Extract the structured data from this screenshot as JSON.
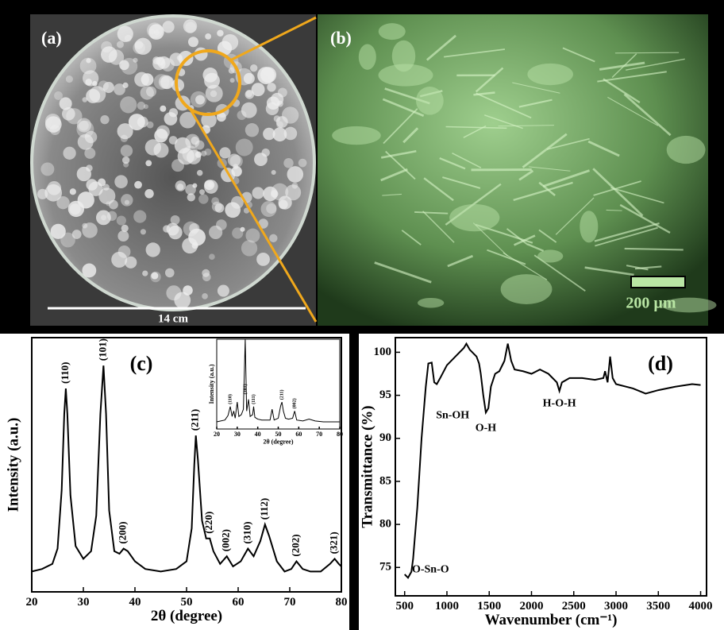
{
  "panels": {
    "a": {
      "label": "(a)",
      "scale": "14 cm"
    },
    "b": {
      "label": "(b)",
      "scale": "200 µm"
    }
  },
  "chart_data": [
    {
      "type": "line",
      "panel": "(c)",
      "xlabel": "2θ (degree)",
      "ylabel": "Intensity (a.u.)",
      "color": "#000000",
      "xlim": [
        20,
        80
      ],
      "xticks": [
        20,
        30,
        40,
        50,
        60,
        70,
        80
      ],
      "ylim": [
        0,
        100
      ],
      "yticks": [],
      "x": [
        20,
        22,
        24,
        25,
        25.8,
        26.3,
        26.6,
        26.9,
        27.5,
        28.5,
        30,
        31.5,
        32.5,
        33.3,
        33.9,
        34.4,
        35,
        36,
        37,
        37.8,
        38.6,
        40,
        42,
        45,
        48,
        50,
        51,
        51.5,
        51.8,
        52.2,
        53,
        53.8,
        54.5,
        55.2,
        56.5,
        57.8,
        59,
        60.5,
        61.9,
        63,
        64.3,
        65.2,
        66,
        67.5,
        69,
        70.3,
        71.3,
        72.5,
        74,
        76,
        77.8,
        78.7,
        79.5,
        80
      ],
      "values": [
        8,
        9,
        11,
        17,
        40,
        70,
        80,
        70,
        38,
        18,
        13,
        16,
        30,
        70,
        89,
        70,
        32,
        16,
        15,
        17,
        16,
        12,
        9,
        8,
        9,
        12,
        25,
        50,
        61.5,
        52,
        28,
        21,
        21,
        16,
        11,
        14,
        10,
        12,
        17,
        14,
        20,
        26.5,
        22,
        12,
        8,
        9,
        12,
        9,
        8,
        8,
        11,
        13,
        11,
        10
      ],
      "annotations": [
        {
          "text": "(110)",
          "x": 26.6,
          "y": 80
        },
        {
          "text": "(101)",
          "x": 33.9,
          "y": 89
        },
        {
          "text": "(200)",
          "x": 37.8,
          "y": 17
        },
        {
          "text": "(211)",
          "x": 51.8,
          "y": 61.5
        },
        {
          "text": "(220)",
          "x": 54.5,
          "y": 21
        },
        {
          "text": "(002)",
          "x": 57.8,
          "y": 14
        },
        {
          "text": "(310)",
          "x": 61.9,
          "y": 17
        },
        {
          "text": "(112)",
          "x": 65.2,
          "y": 26.5
        },
        {
          "text": "(202)",
          "x": 71.3,
          "y": 12
        },
        {
          "text": "(321)",
          "x": 78.7,
          "y": 13
        }
      ]
    },
    {
      "type": "line",
      "xlabel": "2θ (degree)",
      "ylabel": "Intensity (a.u.)",
      "color": "#000000",
      "xlim": [
        20,
        80
      ],
      "xticks": [
        20,
        30,
        40,
        50,
        60,
        70,
        80
      ],
      "ylim": [
        0,
        100
      ],
      "yticks": [],
      "x": [
        20,
        24,
        25.5,
        26.6,
        27.5,
        28.3,
        29,
        30,
        30.8,
        32,
        33,
        33.9,
        34.6,
        35.5,
        36.3,
        37.5,
        38,
        38.6,
        40,
        42,
        46,
        47,
        48,
        50,
        51.2,
        51.8,
        52.5,
        53.5,
        55,
        57,
        58,
        59,
        62,
        65,
        68,
        72,
        76,
        80
      ],
      "values": [
        8,
        10,
        15,
        25,
        14,
        20,
        12,
        30,
        14,
        16,
        22,
        100,
        20,
        33,
        14,
        16,
        25,
        13,
        11,
        10,
        10,
        22,
        10,
        12,
        26,
        30,
        20,
        12,
        11,
        12,
        20,
        10,
        9,
        11,
        9,
        8,
        8,
        8
      ],
      "annotations": [
        {
          "text": "(110)",
          "x": 26.6,
          "y": 25
        },
        {
          "text": "(101)",
          "x": 33.9,
          "y": 36
        },
        {
          "text": "(111)",
          "x": 38,
          "y": 25
        },
        {
          "text": "(211)",
          "x": 51.8,
          "y": 30
        },
        {
          "text": "(002)",
          "x": 58,
          "y": 20
        }
      ]
    },
    {
      "type": "line",
      "panel": "(d)",
      "xlabel": "Wavenumber (cm⁻¹)",
      "ylabel": "Transmittance (%)",
      "color": "#000000",
      "xlim": [
        390,
        4070
      ],
      "xticks": [
        500,
        1000,
        1500,
        2000,
        2500,
        3000,
        3500,
        4000
      ],
      "ylim": [
        71.7,
        101.7
      ],
      "yticks": [
        75,
        80,
        85,
        90,
        95,
        100
      ],
      "x": [
        500,
        540,
        580,
        600,
        650,
        700,
        750,
        780,
        820,
        850,
        880,
        920,
        1000,
        1100,
        1200,
        1230,
        1270,
        1350,
        1380,
        1400,
        1430,
        1460,
        1490,
        1520,
        1570,
        1620,
        1680,
        1720,
        1760,
        1800,
        1900,
        2000,
        2100,
        2200,
        2300,
        2330,
        2360,
        2450,
        2600,
        2750,
        2850,
        2870,
        2900,
        2930,
        2960,
        3000,
        3200,
        3350,
        3500,
        3700,
        3900,
        4000
      ],
      "values": [
        74.2,
        73.8,
        74.5,
        76,
        82,
        90,
        96,
        98.7,
        98.8,
        96.5,
        96.3,
        97,
        98.5,
        99.5,
        100.5,
        101,
        100.3,
        99.5,
        98.7,
        97.5,
        95,
        93,
        93.5,
        96,
        97.5,
        97.8,
        99,
        101,
        99,
        98,
        97.8,
        97.5,
        98,
        97.5,
        96.5,
        95.5,
        96.5,
        97,
        97,
        96.8,
        97,
        97.8,
        96.5,
        99.5,
        97,
        96.3,
        95.8,
        95.2,
        95.6,
        96,
        96.3,
        96.2
      ],
      "annotations": [
        {
          "text": "Sn-OH",
          "x": 880,
          "y": 96.3
        },
        {
          "text": "O-H",
          "x": 1460,
          "y": 93
        },
        {
          "text": "H-O-H",
          "x": 2330,
          "y": 95.5
        },
        {
          "text": "O-Sn-O",
          "x": 540,
          "y": 73.8
        }
      ]
    }
  ]
}
